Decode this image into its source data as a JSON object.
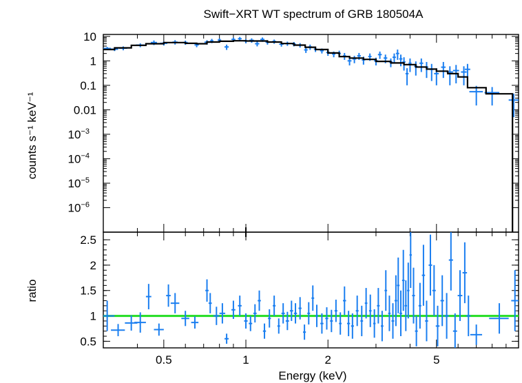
{
  "chart_data": {
    "type": "scatter",
    "title": "Swift−XRT WT spectrum of GRB 180504A",
    "xlabel": "Energy (keV)",
    "xscale": "log",
    "xlim": [
      0.3,
      10
    ],
    "colors": {
      "data": "#1a7ef0",
      "model": "#000000",
      "unity": "#22dd22"
    },
    "panels": [
      {
        "name": "spectrum",
        "ylabel": "counts s⁻¹ keV⁻¹",
        "yscale": "log",
        "ylim": [
          1e-07,
          12
        ],
        "yticks": [
          {
            "v": 10,
            "label": "10"
          },
          {
            "v": 1,
            "label": "1"
          },
          {
            "v": 0.1,
            "label": "0.1"
          },
          {
            "v": 0.01,
            "label": "0.01"
          },
          {
            "v": 0.001,
            "label": "10",
            "exp": "−3"
          },
          {
            "v": 0.0001,
            "label": "10",
            "exp": "−4"
          },
          {
            "v": 1e-05,
            "label": "10",
            "exp": "−5"
          },
          {
            "v": 1e-06,
            "label": "10",
            "exp": "−6"
          }
        ],
        "data": [
          [
            0.31,
            3.2,
            0.01,
            0.5
          ],
          [
            0.33,
            3.0,
            0.01,
            0.5
          ],
          [
            0.355,
            3.3,
            0.012,
            0.6
          ],
          [
            0.41,
            4.4,
            0.015,
            0.8
          ],
          [
            0.46,
            5.6,
            0.012,
            1.2
          ],
          [
            0.5,
            5.2,
            0.015,
            1.0
          ],
          [
            0.55,
            5.8,
            0.012,
            1.2
          ],
          [
            0.6,
            5.6,
            0.012,
            1.1
          ],
          [
            0.66,
            4.5,
            0.012,
            0.9
          ],
          [
            0.72,
            5.8,
            0.015,
            1.2
          ],
          [
            0.75,
            6.6,
            0.01,
            1.3
          ],
          [
            0.8,
            7.0,
            0.012,
            1.3
          ],
          [
            0.85,
            3.7,
            0.015,
            0.9
          ],
          [
            0.9,
            7.5,
            0.015,
            1.4
          ],
          [
            0.95,
            8.0,
            0.015,
            1.5
          ],
          [
            1.0,
            6.5,
            0.02,
            1.3
          ],
          [
            1.05,
            6.9,
            0.02,
            1.4
          ],
          [
            1.1,
            5.0,
            0.02,
            1.1
          ],
          [
            1.15,
            7.5,
            0.02,
            1.5
          ],
          [
            1.2,
            5.8,
            0.02,
            1.2
          ],
          [
            1.27,
            6.2,
            0.02,
            1.2
          ],
          [
            1.35,
            4.8,
            0.025,
            1.0
          ],
          [
            1.42,
            5.1,
            0.025,
            1.0
          ],
          [
            1.5,
            4.9,
            0.025,
            1.0
          ],
          [
            1.58,
            4.4,
            0.025,
            0.9
          ],
          [
            1.66,
            2.8,
            0.025,
            0.7
          ],
          [
            1.72,
            3.7,
            0.025,
            0.9
          ],
          [
            1.8,
            3.0,
            0.025,
            0.7
          ],
          [
            1.9,
            2.6,
            0.03,
            0.6
          ],
          [
            2.0,
            2.2,
            0.03,
            0.6
          ],
          [
            2.1,
            1.9,
            0.03,
            0.5
          ],
          [
            2.2,
            2.0,
            0.03,
            0.6
          ],
          [
            2.3,
            1.6,
            0.03,
            0.5
          ],
          [
            2.4,
            1.0,
            0.04,
            0.35
          ],
          [
            2.5,
            1.2,
            0.04,
            0.4
          ],
          [
            2.6,
            1.6,
            0.04,
            0.5
          ],
          [
            2.7,
            1.1,
            0.04,
            0.4
          ],
          [
            2.85,
            1.5,
            0.04,
            0.5
          ],
          [
            3.0,
            1.0,
            0.05,
            0.35
          ],
          [
            3.1,
            1.8,
            0.05,
            0.6
          ],
          [
            3.25,
            1.3,
            0.05,
            0.5
          ],
          [
            3.4,
            0.9,
            0.05,
            0.35
          ],
          [
            3.5,
            1.4,
            0.05,
            0.6
          ],
          [
            3.6,
            2.0,
            0.05,
            0.9
          ],
          [
            3.7,
            1.2,
            0.05,
            0.6
          ],
          [
            3.8,
            0.9,
            0.05,
            0.5
          ],
          [
            3.9,
            0.3,
            0.05,
            0.2
          ],
          [
            4.0,
            0.8,
            0.05,
            0.45
          ],
          [
            4.2,
            0.6,
            0.06,
            0.35
          ],
          [
            4.4,
            0.8,
            0.07,
            0.45
          ],
          [
            4.6,
            0.55,
            0.07,
            0.35
          ],
          [
            4.8,
            0.45,
            0.08,
            0.3
          ],
          [
            5.0,
            0.3,
            0.1,
            0.2
          ],
          [
            5.3,
            0.55,
            0.1,
            0.35
          ],
          [
            5.6,
            0.35,
            0.15,
            0.25
          ],
          [
            5.9,
            0.4,
            0.15,
            0.28
          ],
          [
            6.3,
            0.35,
            0.15,
            0.25
          ],
          [
            6.5,
            0.45,
            0.15,
            0.3
          ],
          [
            7.0,
            0.055,
            0.4,
            0.04
          ],
          [
            8.0,
            0.05,
            0.5,
            0.035
          ],
          [
            9.6,
            0.025,
            0.4,
            0.02
          ]
        ],
        "model": [
          [
            0.3,
            2.9
          ],
          [
            0.33,
            2.9
          ],
          [
            0.33,
            3.4
          ],
          [
            0.38,
            3.4
          ],
          [
            0.38,
            4.3
          ],
          [
            0.43,
            4.3
          ],
          [
            0.43,
            5.0
          ],
          [
            0.5,
            5.0
          ],
          [
            0.5,
            5.6
          ],
          [
            0.6,
            5.6
          ],
          [
            0.6,
            5.2
          ],
          [
            0.66,
            5.2
          ],
          [
            0.66,
            5.0
          ],
          [
            0.72,
            5.0
          ],
          [
            0.72,
            5.9
          ],
          [
            0.8,
            5.9
          ],
          [
            0.8,
            6.3
          ],
          [
            0.9,
            6.3
          ],
          [
            0.9,
            6.6
          ],
          [
            1.0,
            6.6
          ],
          [
            1.0,
            6.5
          ],
          [
            1.2,
            6.5
          ],
          [
            1.2,
            5.9
          ],
          [
            1.35,
            5.9
          ],
          [
            1.35,
            5.1
          ],
          [
            1.5,
            5.1
          ],
          [
            1.5,
            4.4
          ],
          [
            1.65,
            4.4
          ],
          [
            1.65,
            3.6
          ],
          [
            1.8,
            3.6
          ],
          [
            1.8,
            2.9
          ],
          [
            2.0,
            2.9
          ],
          [
            2.0,
            2.1
          ],
          [
            2.2,
            2.1
          ],
          [
            2.2,
            1.5
          ],
          [
            2.4,
            1.5
          ],
          [
            2.4,
            1.3
          ],
          [
            2.7,
            1.3
          ],
          [
            2.7,
            1.15
          ],
          [
            3.0,
            1.15
          ],
          [
            3.0,
            0.95
          ],
          [
            3.4,
            0.95
          ],
          [
            3.4,
            0.82
          ],
          [
            3.8,
            0.82
          ],
          [
            3.8,
            0.7
          ],
          [
            4.2,
            0.7
          ],
          [
            4.2,
            0.56
          ],
          [
            4.6,
            0.56
          ],
          [
            4.6,
            0.46
          ],
          [
            5.0,
            0.46
          ],
          [
            5.0,
            0.38
          ],
          [
            5.5,
            0.38
          ],
          [
            5.5,
            0.3
          ],
          [
            6.0,
            0.3
          ],
          [
            6.0,
            0.22
          ],
          [
            6.5,
            0.22
          ],
          [
            6.5,
            0.08
          ],
          [
            7.6,
            0.08
          ],
          [
            7.6,
            0.045
          ],
          [
            9.5,
            0.045
          ],
          [
            9.5,
            1e-07
          ]
        ]
      },
      {
        "name": "ratio",
        "ylabel": "ratio",
        "yscale": "linear",
        "ylim": [
          0.37,
          2.65
        ],
        "yticks": [
          {
            "v": 0.5,
            "label": "0.5"
          },
          {
            "v": 1,
            "label": "1"
          },
          {
            "v": 1.5,
            "label": "1.5"
          },
          {
            "v": 2,
            "label": "2"
          },
          {
            "v": 2.5,
            "label": "2.5"
          }
        ],
        "reference": 1.0,
        "data": [
          [
            0.31,
            1.0,
            0.02,
            0.3
          ],
          [
            0.34,
            0.72,
            0.02,
            0.12
          ],
          [
            0.38,
            0.86,
            0.02,
            0.15
          ],
          [
            0.41,
            0.87,
            0.02,
            0.2
          ],
          [
            0.44,
            1.38,
            0.01,
            0.25
          ],
          [
            0.48,
            0.73,
            0.02,
            0.12
          ],
          [
            0.52,
            1.4,
            0.01,
            0.22
          ],
          [
            0.55,
            1.25,
            0.02,
            0.2
          ],
          [
            0.6,
            0.95,
            0.02,
            0.15
          ],
          [
            0.65,
            0.87,
            0.02,
            0.12
          ],
          [
            0.72,
            1.5,
            0.01,
            0.22
          ],
          [
            0.74,
            1.25,
            0.01,
            0.2
          ],
          [
            0.78,
            1.0,
            0.02,
            0.18
          ],
          [
            0.82,
            1.05,
            0.02,
            0.2
          ],
          [
            0.85,
            0.55,
            0.015,
            0.1
          ],
          [
            0.9,
            1.12,
            0.015,
            0.18
          ],
          [
            0.95,
            1.2,
            0.015,
            0.2
          ],
          [
            1.0,
            0.9,
            0.015,
            0.15
          ],
          [
            1.04,
            0.85,
            0.015,
            0.15
          ],
          [
            1.08,
            1.05,
            0.015,
            0.18
          ],
          [
            1.12,
            1.3,
            0.015,
            0.2
          ],
          [
            1.17,
            0.7,
            0.015,
            0.15
          ],
          [
            1.22,
            0.95,
            0.015,
            0.18
          ],
          [
            1.27,
            1.2,
            0.015,
            0.2
          ],
          [
            1.32,
            0.8,
            0.015,
            0.15
          ],
          [
            1.37,
            1.05,
            0.02,
            0.2
          ],
          [
            1.42,
            0.9,
            0.02,
            0.18
          ],
          [
            1.47,
            1.1,
            0.02,
            0.2
          ],
          [
            1.52,
            1.05,
            0.02,
            0.2
          ],
          [
            1.58,
            1.15,
            0.02,
            0.22
          ],
          [
            1.64,
            0.68,
            0.02,
            0.15
          ],
          [
            1.7,
            1.05,
            0.02,
            0.22
          ],
          [
            1.76,
            1.35,
            0.02,
            0.25
          ],
          [
            1.82,
            1.0,
            0.02,
            0.22
          ],
          [
            1.9,
            0.85,
            0.025,
            0.2
          ],
          [
            1.98,
            0.95,
            0.025,
            0.22
          ],
          [
            2.06,
            0.9,
            0.025,
            0.22
          ],
          [
            2.14,
            1.1,
            0.025,
            0.22
          ],
          [
            2.22,
            0.85,
            0.025,
            0.22
          ],
          [
            2.3,
            1.3,
            0.03,
            0.28
          ],
          [
            2.38,
            0.85,
            0.03,
            0.25
          ],
          [
            2.46,
            0.8,
            0.03,
            0.25
          ],
          [
            2.56,
            1.1,
            0.03,
            0.3
          ],
          [
            2.66,
            0.9,
            0.03,
            0.3
          ],
          [
            2.76,
            1.25,
            0.03,
            0.3
          ],
          [
            2.86,
            1.1,
            0.03,
            0.32
          ],
          [
            2.96,
            0.85,
            0.03,
            0.28
          ],
          [
            3.06,
            1.2,
            0.035,
            0.35
          ],
          [
            3.16,
            0.8,
            0.035,
            0.3
          ],
          [
            3.26,
            1.5,
            0.035,
            0.4
          ],
          [
            3.36,
            1.05,
            0.035,
            0.35
          ],
          [
            3.46,
            0.9,
            0.04,
            0.35
          ],
          [
            3.55,
            1.3,
            0.04,
            0.5
          ],
          [
            3.62,
            1.6,
            0.04,
            0.55
          ],
          [
            3.7,
            1.05,
            0.04,
            0.45
          ],
          [
            3.78,
            1.7,
            0.04,
            0.6
          ],
          [
            3.86,
            1.2,
            0.04,
            0.5
          ],
          [
            3.94,
            1.5,
            0.04,
            0.55
          ],
          [
            4.02,
            2.2,
            0.04,
            0.65
          ],
          [
            4.12,
            1.4,
            0.05,
            0.55
          ],
          [
            4.22,
            0.7,
            0.05,
            0.3
          ],
          [
            4.35,
            1.2,
            0.05,
            0.45
          ],
          [
            4.48,
            1.8,
            0.06,
            0.6
          ],
          [
            4.6,
            0.9,
            0.06,
            0.4
          ],
          [
            4.75,
            2.0,
            0.07,
            0.6
          ],
          [
            4.9,
            1.5,
            0.07,
            0.5
          ],
          [
            5.05,
            0.8,
            0.08,
            0.4
          ],
          [
            5.25,
            1.3,
            0.08,
            0.5
          ],
          [
            5.45,
            1.0,
            0.1,
            0.45
          ],
          [
            5.65,
            2.1,
            0.1,
            0.6
          ],
          [
            5.85,
            0.7,
            0.1,
            0.35
          ],
          [
            6.1,
            1.4,
            0.12,
            0.5
          ],
          [
            6.35,
            1.85,
            0.12,
            0.6
          ],
          [
            6.55,
            1.0,
            0.12,
            0.4
          ],
          [
            7.0,
            0.63,
            0.35,
            0.2
          ],
          [
            8.5,
            0.95,
            0.7,
            0.3
          ],
          [
            9.7,
            1.3,
            0.3,
            0.6
          ]
        ]
      }
    ],
    "xticks": [
      {
        "v": 0.5,
        "label": "0.5"
      },
      {
        "v": 1,
        "label": "1"
      },
      {
        "v": 2,
        "label": "2"
      },
      {
        "v": 5,
        "label": "5"
      }
    ],
    "grid": false,
    "legend": "none"
  }
}
